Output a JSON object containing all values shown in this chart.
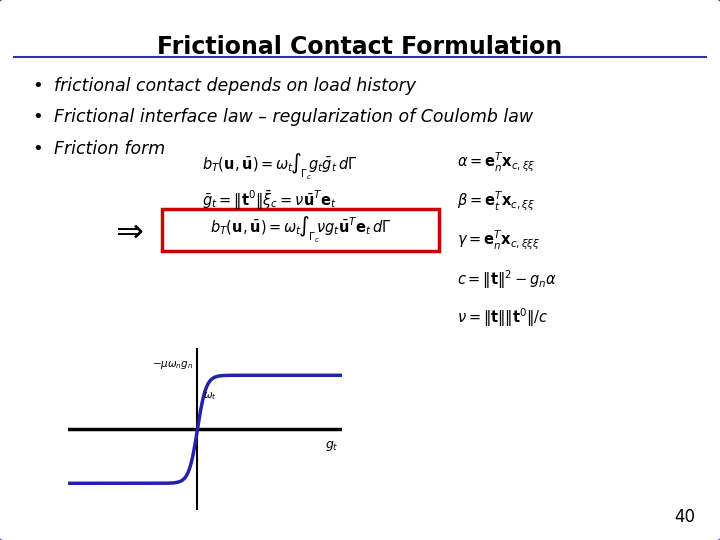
{
  "title": "Frictional Contact Formulation",
  "bullet1": "frictional contact depends on load history",
  "bullet2": "Frictional interface law – regularization of Coulomb law",
  "bullet3": "Friction form",
  "bg_color": "#ffffff",
  "border_color": "#3333aa",
  "title_color": "#000000",
  "text_color": "#000000",
  "formula_color": "#000000",
  "highlight_box_color": "#cc0000",
  "curve_color": "#2222aa",
  "axis_color": "#000000",
  "page_number": "40",
  "figwidth": 7.2,
  "figheight": 5.4,
  "dpi": 100
}
